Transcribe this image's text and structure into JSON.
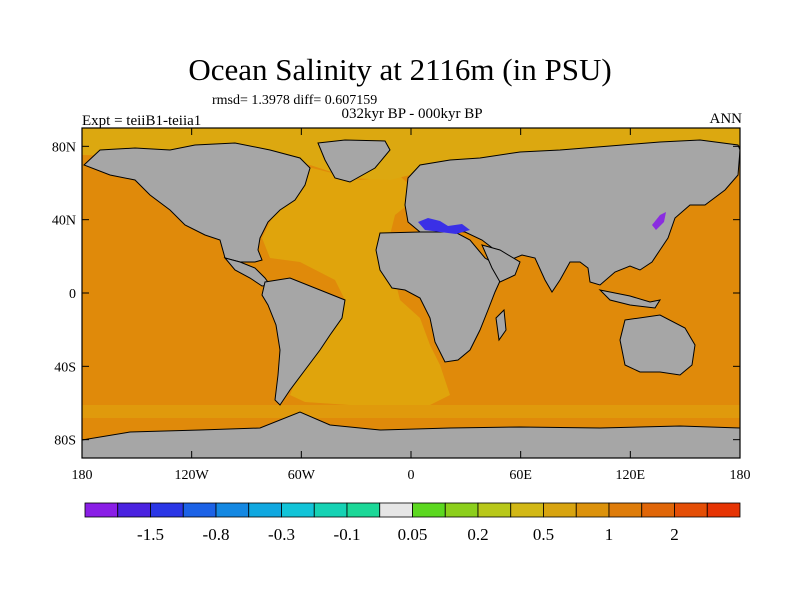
{
  "title": "Ocean Salinity at 2116m (in PSU)",
  "stats": "rmsd= 1.3978 diff= 0.607159",
  "period": "032kyr BP - 000kyr BP",
  "experiment": "Expt = teiiB1-teiia1",
  "season": "ANN",
  "colors": {
    "land": "#a6a6a6",
    "ocean_main": "#e08a0a",
    "ocean_atlantic": "#e0a40c",
    "arctic": "#dca810",
    "anomaly_blue": "#3a30e6",
    "anomaly_purple": "#8a2ce0"
  },
  "chart_data": {
    "type": "heatmap",
    "projection": "cylindrical-equidistant",
    "xlim": [
      -180,
      180
    ],
    "ylim": [
      -90,
      90
    ],
    "xticks": [
      {
        "value": -180,
        "label": "180"
      },
      {
        "value": -120,
        "label": "120W"
      },
      {
        "value": -60,
        "label": "60W"
      },
      {
        "value": 0,
        "label": "0"
      },
      {
        "value": 60,
        "label": "60E"
      },
      {
        "value": 120,
        "label": "120E"
      },
      {
        "value": 180,
        "label": "180"
      }
    ],
    "yticks": [
      {
        "value": 80,
        "label": "80N"
      },
      {
        "value": 40,
        "label": "40N"
      },
      {
        "value": 0,
        "label": "0"
      },
      {
        "value": -40,
        "label": "40S"
      },
      {
        "value": -80,
        "label": "80S"
      }
    ],
    "colorbar": {
      "colors": [
        "#8a1ee6",
        "#4a22e0",
        "#2a36e6",
        "#1c62e6",
        "#1488e2",
        "#10a8e0",
        "#12c4d8",
        "#16d2b4",
        "#1cd898",
        "#e6e6e6",
        "#5cd820",
        "#8ccf1c",
        "#b8c81a",
        "#d2b816",
        "#d8a410",
        "#dc920c",
        "#de7c0a",
        "#e06608",
        "#e44e06",
        "#e63404"
      ],
      "labels": [
        {
          "after_box": 2,
          "text": "-1.5"
        },
        {
          "after_box": 4,
          "text": "-0.8"
        },
        {
          "after_box": 6,
          "text": "-0.3"
        },
        {
          "after_box": 8,
          "text": "-0.1"
        },
        {
          "after_box": 10,
          "text": "0.05"
        },
        {
          "after_box": 12,
          "text": "0.2"
        },
        {
          "after_box": 14,
          "text": "0.5"
        },
        {
          "after_box": 16,
          "text": "1"
        },
        {
          "after_box": 18,
          "text": "2"
        }
      ]
    },
    "regions": [
      {
        "name": "global-ocean",
        "approx_diff": 1.2
      },
      {
        "name": "atlantic-ocean",
        "approx_diff": 0.7
      },
      {
        "name": "arctic-ocean",
        "approx_diff": 0.6
      },
      {
        "name": "mediterranean-sea",
        "approx_diff": -1.5
      },
      {
        "name": "japan-sea",
        "approx_diff": -2.0
      }
    ]
  }
}
